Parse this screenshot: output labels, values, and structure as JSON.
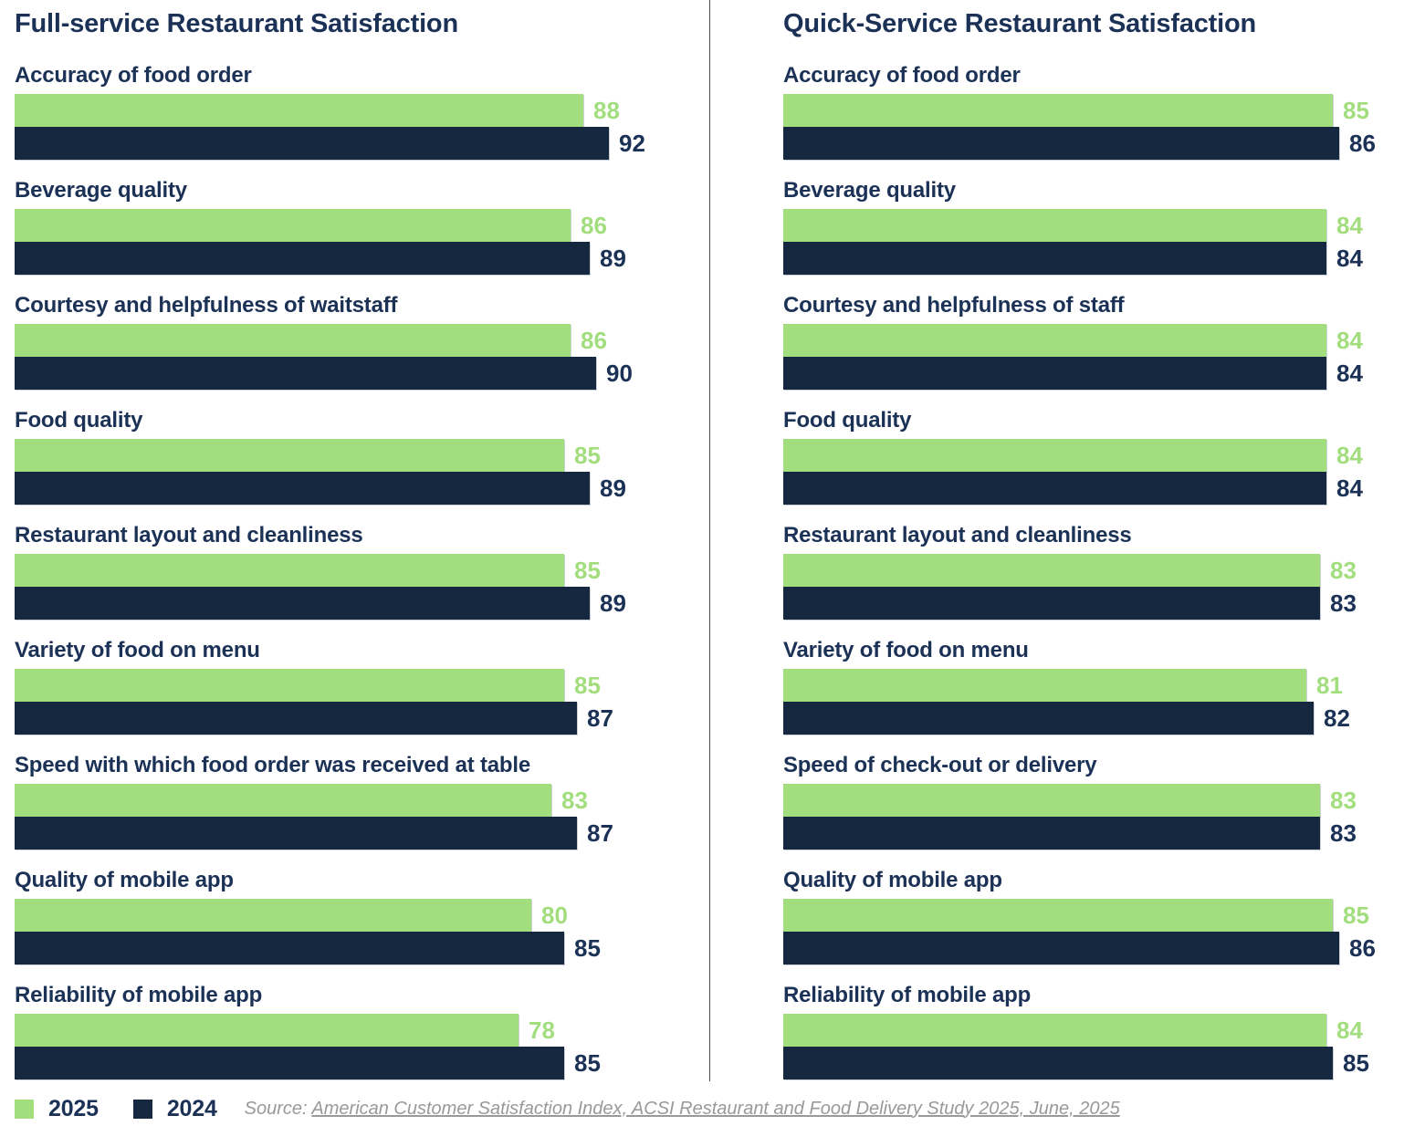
{
  "chart_data": [
    {
      "type": "bar",
      "orientation": "horizontal",
      "title": "Full-service Restaurant Satisfaction",
      "categories": [
        "Accuracy of food order",
        "Beverage quality",
        "Courtesy and helpfulness of waitstaff",
        "Food quality",
        "Restaurant layout and cleanliness",
        "Variety of food on menu",
        "Speed with which food order was received at table",
        "Quality of mobile app",
        "Reliability of mobile app"
      ],
      "series": [
        {
          "name": "2025",
          "values": [
            88,
            86,
            86,
            85,
            85,
            85,
            83,
            80,
            78
          ]
        },
        {
          "name": "2024",
          "values": [
            92,
            89,
            90,
            89,
            89,
            87,
            87,
            85,
            85
          ]
        }
      ],
      "xlim": [
        0,
        100
      ],
      "grid": false,
      "value_labels": "outside-end"
    },
    {
      "type": "bar",
      "orientation": "horizontal",
      "title": "Quick-Service Restaurant Satisfaction",
      "categories": [
        "Accuracy of food order",
        "Beverage quality",
        "Courtesy and helpfulness of staff",
        "Food quality",
        "Restaurant layout and cleanliness",
        "Variety of food on menu",
        "Speed of check-out or delivery",
        "Quality of mobile app",
        "Reliability of mobile app"
      ],
      "series": [
        {
          "name": "2025",
          "values": [
            85,
            84,
            84,
            84,
            83,
            81,
            83,
            85,
            84
          ]
        },
        {
          "name": "2024",
          "values": [
            86,
            84,
            84,
            84,
            83,
            82,
            83,
            86,
            85
          ]
        }
      ],
      "xlim": [
        0,
        100
      ],
      "grid": false,
      "value_labels": "outside-end"
    }
  ],
  "legend": {
    "position": "bottom-left",
    "items": [
      {
        "label": "2025",
        "color": "#a3de7e"
      },
      {
        "label": "2024",
        "color": "#162840"
      }
    ]
  },
  "source": {
    "prefix": "Source: ",
    "link_text": "American Customer Satisfaction Index, ACSI Restaurant and Food Delivery Study 2025, June, 2025"
  },
  "colors": {
    "bar_2025": "#a3de7e",
    "bar_2024": "#162840",
    "value_2025": "#a3de7e",
    "value_2024": "#1b3156",
    "heading": "#1b3156",
    "source_text": "#999999",
    "divider": "#4a4a4a"
  }
}
